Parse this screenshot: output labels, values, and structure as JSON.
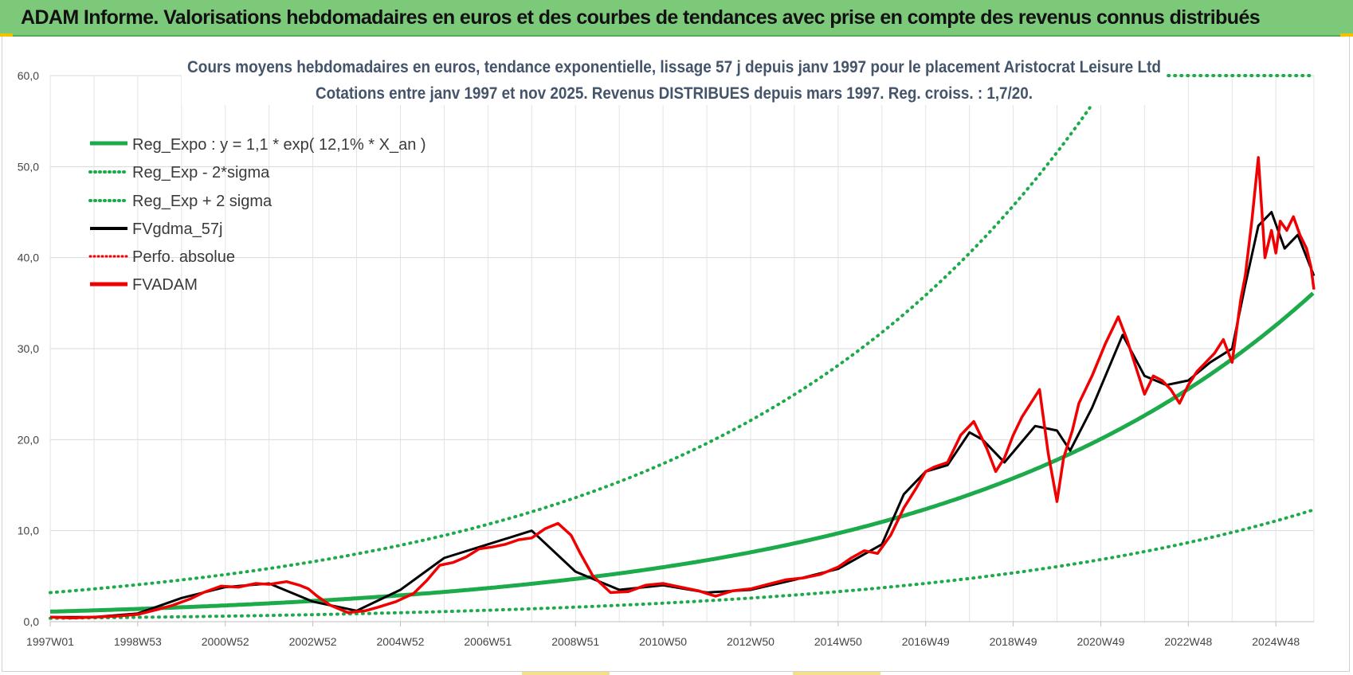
{
  "header": {
    "title": "ADAM Informe. Valorisations hebdomadaires en euros et des courbes de tendances avec prise en compte des revenus connus distribués"
  },
  "colors": {
    "header_bg": "#7dc97a",
    "green": "#1daa4b",
    "red": "#f00000",
    "black": "#000000",
    "title_text": "#44546a"
  },
  "chart_data": {
    "type": "line",
    "title": "Cours moyens hebdomadaires en euros, tendance exponentielle, lissage 57 j depuis janv 1997 pour le placement Aristocrat Leisure Ltd",
    "subtitle": "Cotations entre janv 1997 et nov 2025. Revenus DISTRIBUES depuis mars 1997. Reg. croiss. : 1,7/20.",
    "xlabel": "",
    "ylabel": "",
    "xlim": [
      1997.0,
      2025.87
    ],
    "ylim": [
      0,
      60
    ],
    "y_ticks": [
      "0,0",
      "10,0",
      "20,0",
      "30,0",
      "40,0",
      "50,0",
      "60,0"
    ],
    "x_tick_labels": [
      "1997W01",
      "1998W53",
      "2000W52",
      "2002W52",
      "2004W52",
      "2006W51",
      "2008W51",
      "2010W50",
      "2012W50",
      "2014W50",
      "2016W49",
      "2018W49",
      "2020W49",
      "2022W48",
      "2024W48"
    ],
    "x_tick_years": [
      1997.0,
      1999.0,
      2001.0,
      2003.0,
      2005.0,
      2007.0,
      2009.0,
      2011.0,
      2013.0,
      2015.0,
      2017.0,
      2019.0,
      2021.0,
      2023.0,
      2025.0
    ],
    "grid": true,
    "legend_position": "top-left",
    "legend": [
      {
        "label": "Reg_Expo : y = 1,1 * exp( 12,1% *  X_an )",
        "style": "solid",
        "color": "#1daa4b"
      },
      {
        "label": "Reg_Exp - 2*sigma",
        "style": "dotted",
        "color": "#1daa4b"
      },
      {
        "label": "Reg_Exp + 2 sigma",
        "style": "dotted",
        "color": "#1daa4b"
      },
      {
        "label": "FVgdma_57j",
        "style": "solid",
        "color": "#000000"
      },
      {
        "label": "Perfo. absolue",
        "style": "dotted",
        "color": "#f00000"
      },
      {
        "label": "FVADAM",
        "style": "solid",
        "color": "#f00000"
      }
    ],
    "regression": {
      "a": 1.1,
      "rate": 0.121,
      "lower_factor": 0.34,
      "upper_factor": 2.9,
      "x_end": 2025.87
    },
    "series": [
      {
        "name": "FVADAM",
        "x": [
          1997.0,
          1997.5,
          1998.0,
          1998.5,
          1999.0,
          1999.5,
          1999.8,
          2000.2,
          2000.5,
          2000.9,
          2001.3,
          2001.7,
          2002.0,
          2002.4,
          2002.7,
          2002.9,
          2003.1,
          2003.4,
          2003.8,
          2004.2,
          2004.5,
          2004.9,
          2005.3,
          2005.6,
          2005.9,
          2006.2,
          2006.5,
          2006.8,
          2007.1,
          2007.4,
          2007.7,
          2008.0,
          2008.3,
          2008.6,
          2008.9,
          2009.1,
          2009.4,
          2009.8,
          2010.2,
          2010.6,
          2011.0,
          2011.4,
          2011.8,
          2012.2,
          2012.6,
          2013.0,
          2013.4,
          2013.8,
          2014.2,
          2014.6,
          2015.0,
          2015.3,
          2015.6,
          2015.9,
          2016.2,
          2016.5,
          2016.8,
          2017.0,
          2017.2,
          2017.5,
          2017.8,
          2018.1,
          2018.4,
          2018.6,
          2018.8,
          2019.0,
          2019.2,
          2019.4,
          2019.6,
          2019.8,
          2020.0,
          2020.15,
          2020.25,
          2020.35,
          2020.5,
          2020.8,
          2021.1,
          2021.4,
          2021.6,
          2021.8,
          2022.0,
          2022.2,
          2022.4,
          2022.6,
          2022.8,
          2023.0,
          2023.2,
          2023.4,
          2023.6,
          2023.8,
          2024.0,
          2024.1,
          2024.2,
          2024.3,
          2024.45,
          2024.6,
          2024.75,
          2024.9,
          2025.0,
          2025.1,
          2025.25,
          2025.4,
          2025.55,
          2025.7,
          2025.8,
          2025.87
        ],
        "values": [
          0.5,
          0.4,
          0.5,
          0.6,
          0.8,
          1.4,
          1.8,
          2.5,
          3.2,
          3.9,
          3.8,
          4.2,
          4.1,
          4.4,
          4.0,
          3.6,
          2.8,
          1.8,
          1.0,
          1.2,
          1.6,
          2.2,
          3.1,
          4.5,
          6.2,
          6.5,
          7.1,
          8.0,
          8.2,
          8.5,
          9.0,
          9.2,
          10.2,
          10.8,
          9.5,
          7.6,
          5.0,
          3.2,
          3.3,
          4.0,
          4.2,
          3.8,
          3.4,
          2.8,
          3.4,
          3.6,
          4.1,
          4.6,
          4.8,
          5.2,
          6.0,
          7.0,
          7.8,
          7.5,
          9.5,
          12.5,
          14.8,
          16.5,
          17.0,
          17.5,
          20.5,
          22.0,
          19.0,
          16.5,
          18.0,
          20.5,
          22.5,
          24.0,
          25.5,
          18.5,
          13.2,
          18.0,
          19.5,
          21.0,
          24.0,
          27.0,
          30.5,
          33.5,
          31.0,
          28.0,
          25.0,
          27.0,
          26.5,
          25.5,
          24.0,
          26.0,
          27.5,
          28.5,
          29.5,
          31.0,
          28.5,
          32.0,
          35.5,
          38.0,
          44.0,
          51.0,
          40.0,
          43.0,
          40.5,
          44.0,
          43.0,
          44.5,
          42.5,
          41.0,
          39.0,
          36.5
        ]
      },
      {
        "name": "FVgdma_57j",
        "x": [
          1997.0,
          1998.0,
          1999.0,
          2000.0,
          2001.0,
          2002.0,
          2003.0,
          2004.0,
          2005.0,
          2006.0,
          2007.0,
          2008.0,
          2009.0,
          2010.0,
          2011.0,
          2012.0,
          2013.0,
          2014.0,
          2015.0,
          2016.0,
          2016.5,
          2017.0,
          2017.5,
          2018.0,
          2018.3,
          2018.8,
          2019.5,
          2020.0,
          2020.3,
          2020.8,
          2021.5,
          2022.0,
          2022.5,
          2023.0,
          2023.5,
          2024.0,
          2024.3,
          2024.6,
          2024.9,
          2025.2,
          2025.5,
          2025.87
        ],
        "values": [
          0.5,
          0.5,
          0.9,
          2.6,
          3.8,
          4.2,
          2.2,
          1.2,
          3.5,
          7.0,
          8.5,
          10.0,
          5.5,
          3.5,
          4.0,
          3.2,
          3.5,
          4.6,
          5.8,
          8.5,
          14.0,
          16.5,
          17.2,
          20.8,
          20.0,
          17.5,
          21.5,
          21.0,
          18.8,
          23.5,
          31.5,
          27.0,
          26.0,
          26.5,
          28.5,
          30.0,
          37.0,
          43.5,
          45.0,
          41.0,
          42.5,
          38.0
        ]
      }
    ]
  }
}
